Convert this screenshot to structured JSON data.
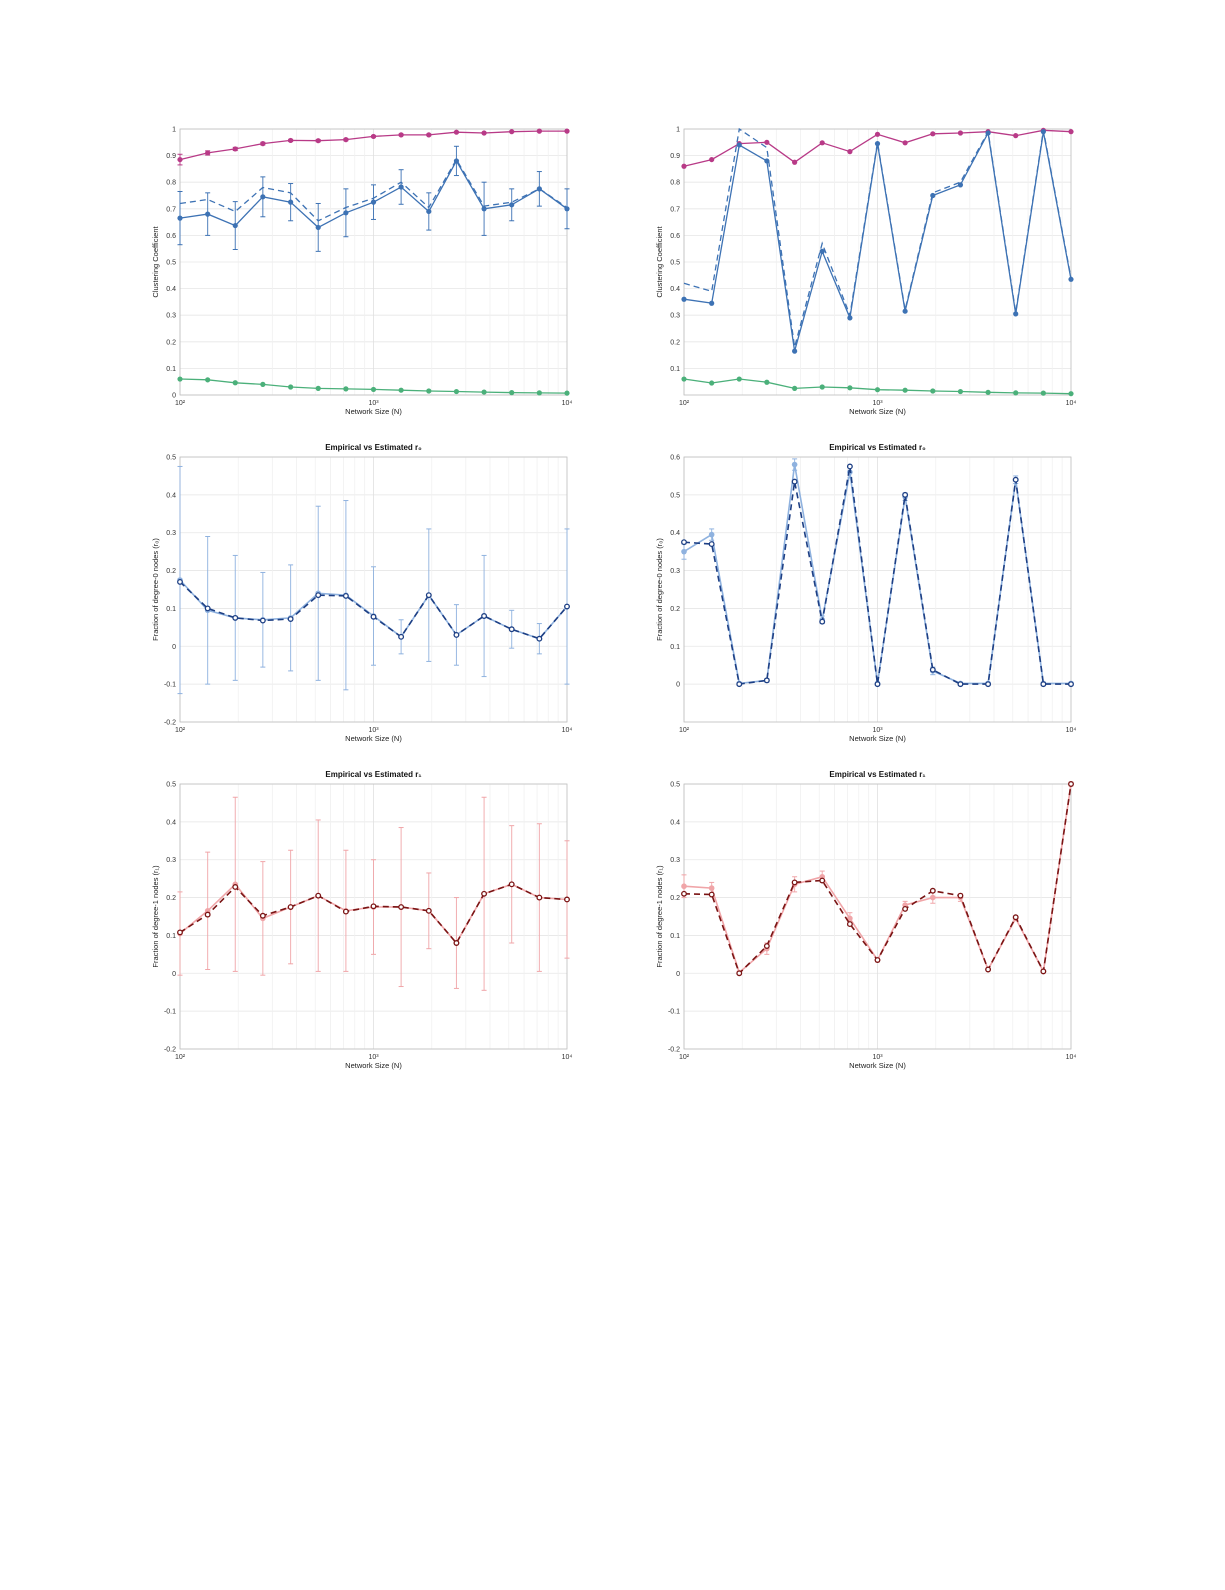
{
  "chart_data": [
    {
      "type": "line",
      "title": "",
      "xlabel": "Network Size (N)",
      "ylabel": "Clustering Coefficient",
      "xscale": "log",
      "xlim": [
        100,
        10000
      ],
      "ylim": [
        0,
        1
      ],
      "xticks": [
        "10²",
        "10³",
        "10⁴"
      ],
      "yticks": [
        "0",
        "0.1",
        "0.2",
        "0.3",
        "0.4",
        "0.5",
        "0.6",
        "0.7",
        "0.8",
        "0.9",
        "1"
      ],
      "grid": true,
      "x": [
        100,
        139,
        193,
        268,
        373,
        518,
        720,
        1000,
        1389,
        1931,
        2683,
        3728,
        5179,
        7197,
        10000
      ],
      "series": [
        {
          "color": "#b83a87",
          "style": "solid-markers",
          "values": [
            0.885,
            0.91,
            0.925,
            0.945,
            0.957,
            0.956,
            0.96,
            0.972,
            0.978,
            0.978,
            0.988,
            0.985,
            0.99,
            0.992,
            0.992
          ],
          "err": [
            0.02,
            0.008,
            0.006,
            0.005,
            0.004,
            0.004,
            0.004,
            0.003,
            0.003,
            0.003,
            0.002,
            0.002,
            0.002,
            0.002,
            0.002
          ]
        },
        {
          "color": "#3d72b4",
          "style": "solid-markers",
          "values": [
            0.665,
            0.68,
            0.637,
            0.745,
            0.725,
            0.63,
            0.685,
            0.725,
            0.782,
            0.69,
            0.88,
            0.7,
            0.715,
            0.775,
            0.7
          ],
          "err": [
            0.1,
            0.08,
            0.09,
            0.075,
            0.07,
            0.09,
            0.09,
            0.065,
            0.065,
            0.07,
            0.055,
            0.1,
            0.06,
            0.065,
            0.075
          ]
        },
        {
          "color": "#3d72b4",
          "style": "dashed",
          "values": [
            0.72,
            0.735,
            0.69,
            0.78,
            0.76,
            0.655,
            0.705,
            0.74,
            0.8,
            0.705,
            0.885,
            0.71,
            0.725,
            0.775,
            0.705
          ]
        },
        {
          "color": "#4bb07a",
          "style": "solid-markers",
          "values": [
            0.06,
            0.057,
            0.046,
            0.04,
            0.03,
            0.025,
            0.023,
            0.021,
            0.018,
            0.015,
            0.013,
            0.011,
            0.009,
            0.008,
            0.007
          ]
        }
      ]
    },
    {
      "type": "line",
      "title": "",
      "xlabel": "Network Size (N)",
      "ylabel": "Clustering Coefficient",
      "xscale": "log",
      "xlim": [
        100,
        10000
      ],
      "ylim": [
        0,
        1
      ],
      "xticks": [
        "10²",
        "10³",
        "10⁴"
      ],
      "yticks": [
        "0.1",
        "0.2",
        "0.3",
        "0.4",
        "0.5",
        "0.6",
        "0.7",
        "0.8",
        "0.9",
        "1"
      ],
      "grid": true,
      "x": [
        100,
        139,
        193,
        268,
        373,
        518,
        720,
        1000,
        1389,
        1931,
        2683,
        3728,
        5179,
        7197,
        10000
      ],
      "series": [
        {
          "color": "#b83a87",
          "style": "solid-markers",
          "values": [
            0.86,
            0.885,
            0.945,
            0.95,
            0.875,
            0.948,
            0.915,
            0.98,
            0.948,
            0.982,
            0.985,
            0.99,
            0.975,
            0.995,
            0.99
          ]
        },
        {
          "color": "#3d72b4",
          "style": "solid-markers",
          "values": [
            0.36,
            0.345,
            0.94,
            0.88,
            0.165,
            0.54,
            0.29,
            0.945,
            0.315,
            0.75,
            0.79,
            0.985,
            0.305,
            0.99,
            0.435
          ]
        },
        {
          "color": "#3d72b4",
          "style": "dashed",
          "values": [
            0.42,
            0.39,
            1.0,
            0.93,
            0.18,
            0.57,
            0.3,
            0.95,
            0.32,
            0.76,
            0.8,
            0.99,
            0.31,
            0.995,
            0.44
          ]
        },
        {
          "color": "#4bb07a",
          "style": "solid-markers",
          "values": [
            0.06,
            0.045,
            0.06,
            0.048,
            0.025,
            0.03,
            0.027,
            0.02,
            0.018,
            0.015,
            0.013,
            0.01,
            0.008,
            0.007,
            0.005
          ]
        }
      ]
    },
    {
      "type": "line",
      "title": "Empirical vs Estimated r₀",
      "xlabel": "Network Size (N)",
      "ylabel": "Fraction of degree-0 nodes (r₀)",
      "xscale": "log",
      "xlim": [
        100,
        10000
      ],
      "ylim": [
        -0.2,
        0.5
      ],
      "xticks": [
        "10²",
        "10³",
        "10⁴"
      ],
      "yticks": [
        "-0.2",
        "-0.1",
        "0",
        "0.1",
        "0.2",
        "0.3",
        "0.4",
        "0.5"
      ],
      "grid": true,
      "x": [
        100,
        139,
        193,
        268,
        373,
        518,
        720,
        1000,
        1389,
        1931,
        2683,
        3728,
        5179,
        7197,
        10000
      ],
      "series": [
        {
          "color": "#8fb2df",
          "style": "solid-markers-light",
          "values": [
            0.175,
            0.095,
            0.075,
            0.07,
            0.075,
            0.14,
            0.135,
            0.08,
            0.025,
            0.135,
            0.03,
            0.08,
            0.045,
            0.02,
            0.105
          ],
          "err": [
            0.3,
            0.195,
            0.165,
            0.125,
            0.14,
            0.23,
            0.25,
            0.13,
            0.045,
            0.175,
            0.08,
            0.16,
            0.05,
            0.04,
            0.205
          ]
        },
        {
          "color": "#1d3f84",
          "style": "dashed-open-markers",
          "values": [
            0.17,
            0.1,
            0.075,
            0.068,
            0.072,
            0.135,
            0.133,
            0.078,
            0.025,
            0.135,
            0.03,
            0.08,
            0.045,
            0.02,
            0.105
          ]
        }
      ]
    },
    {
      "type": "line",
      "title": "Empirical vs Estimated r₀",
      "xlabel": "Network Size (N)",
      "ylabel": "Fraction of degree-0 nodes (r₀)",
      "xscale": "log",
      "xlim": [
        100,
        10000
      ],
      "ylim": [
        -0.1,
        0.6
      ],
      "xticks": [
        "10²",
        "10³",
        "10⁴"
      ],
      "yticks": [
        "0",
        "0.1",
        "0.2",
        "0.3",
        "0.4",
        "0.5",
        "0.6"
      ],
      "grid": true,
      "x": [
        100,
        139,
        193,
        268,
        373,
        518,
        720,
        1000,
        1389,
        1931,
        2683,
        3728,
        5179,
        7197,
        10000
      ],
      "series": [
        {
          "color": "#8fb2df",
          "style": "solid-markers-light",
          "values": [
            0.35,
            0.395,
            0.002,
            0.01,
            0.58,
            0.17,
            0.56,
            0.002,
            0.495,
            0.035,
            0.002,
            0.002,
            0.54,
            0.002,
            0.002
          ],
          "err": [
            0.02,
            0.015,
            0.003,
            0.005,
            0.015,
            0.01,
            0.015,
            0.003,
            0.01,
            0.01,
            0.003,
            0.003,
            0.01,
            0.003,
            0.003
          ]
        },
        {
          "color": "#1d3f84",
          "style": "dashed-open-markers",
          "values": [
            0.375,
            0.37,
            0.0,
            0.01,
            0.535,
            0.165,
            0.575,
            0.0,
            0.5,
            0.038,
            0.0,
            0.0,
            0.54,
            0.0,
            0.0
          ]
        }
      ]
    },
    {
      "type": "line",
      "title": "Empirical vs Estimated r₁",
      "xlabel": "Network Size (N)",
      "ylabel": "Fraction of degree-1 nodes (r₁)",
      "xscale": "log",
      "xlim": [
        100,
        10000
      ],
      "ylim": [
        -0.2,
        0.5
      ],
      "xticks": [
        "10²",
        "10³",
        "10⁴"
      ],
      "yticks": [
        "-0.2",
        "-0.1",
        "0",
        "0.1",
        "0.2",
        "0.3",
        "0.4",
        "0.5"
      ],
      "grid": true,
      "x": [
        100,
        139,
        193,
        268,
        373,
        518,
        720,
        1000,
        1389,
        1931,
        2683,
        3728,
        5179,
        7197,
        10000
      ],
      "series": [
        {
          "color": "#f0a5a8",
          "style": "solid-markers-light",
          "values": [
            0.105,
            0.165,
            0.235,
            0.145,
            0.175,
            0.205,
            0.165,
            0.175,
            0.175,
            0.165,
            0.08,
            0.21,
            0.235,
            0.2,
            0.195
          ],
          "err": [
            0.11,
            0.155,
            0.23,
            0.15,
            0.15,
            0.2,
            0.16,
            0.125,
            0.21,
            0.1,
            0.12,
            0.255,
            0.155,
            0.195,
            0.155
          ]
        },
        {
          "color": "#7a1414",
          "style": "dashed-open-markers",
          "values": [
            0.108,
            0.155,
            0.228,
            0.152,
            0.175,
            0.205,
            0.163,
            0.177,
            0.175,
            0.165,
            0.08,
            0.21,
            0.235,
            0.2,
            0.195
          ]
        }
      ]
    },
    {
      "type": "line",
      "title": "Empirical vs Estimated r₁",
      "xlabel": "Network Size (N)",
      "ylabel": "Fraction of degree-1 nodes (r₁)",
      "xscale": "log",
      "xlim": [
        100,
        10000
      ],
      "ylim": [
        -0.2,
        0.5
      ],
      "xticks": [
        "10²",
        "10³",
        "10⁴"
      ],
      "yticks": [
        "-0.2",
        "-0.1",
        "0",
        "0.1",
        "0.2",
        "0.3",
        "0.4",
        "0.5"
      ],
      "grid": true,
      "x": [
        100,
        139,
        193,
        268,
        373,
        518,
        720,
        1000,
        1389,
        1931,
        2683,
        3728,
        5179,
        7197,
        10000
      ],
      "series": [
        {
          "color": "#f0a5a8",
          "style": "solid-markers-light",
          "values": [
            0.23,
            0.225,
            0.002,
            0.065,
            0.235,
            0.255,
            0.145,
            0.035,
            0.18,
            0.2,
            0.2,
            0.01,
            0.145,
            0.005,
            0.5
          ],
          "err": [
            0.03,
            0.015,
            0.003,
            0.015,
            0.02,
            0.015,
            0.015,
            0.005,
            0.01,
            0.015,
            0.01,
            0.003,
            0.005,
            0.003,
            0.005
          ]
        },
        {
          "color": "#7a1414",
          "style": "dashed-open-markers",
          "values": [
            0.21,
            0.208,
            0.0,
            0.072,
            0.24,
            0.245,
            0.13,
            0.035,
            0.17,
            0.218,
            0.205,
            0.01,
            0.148,
            0.005,
            0.5
          ]
        }
      ]
    }
  ]
}
